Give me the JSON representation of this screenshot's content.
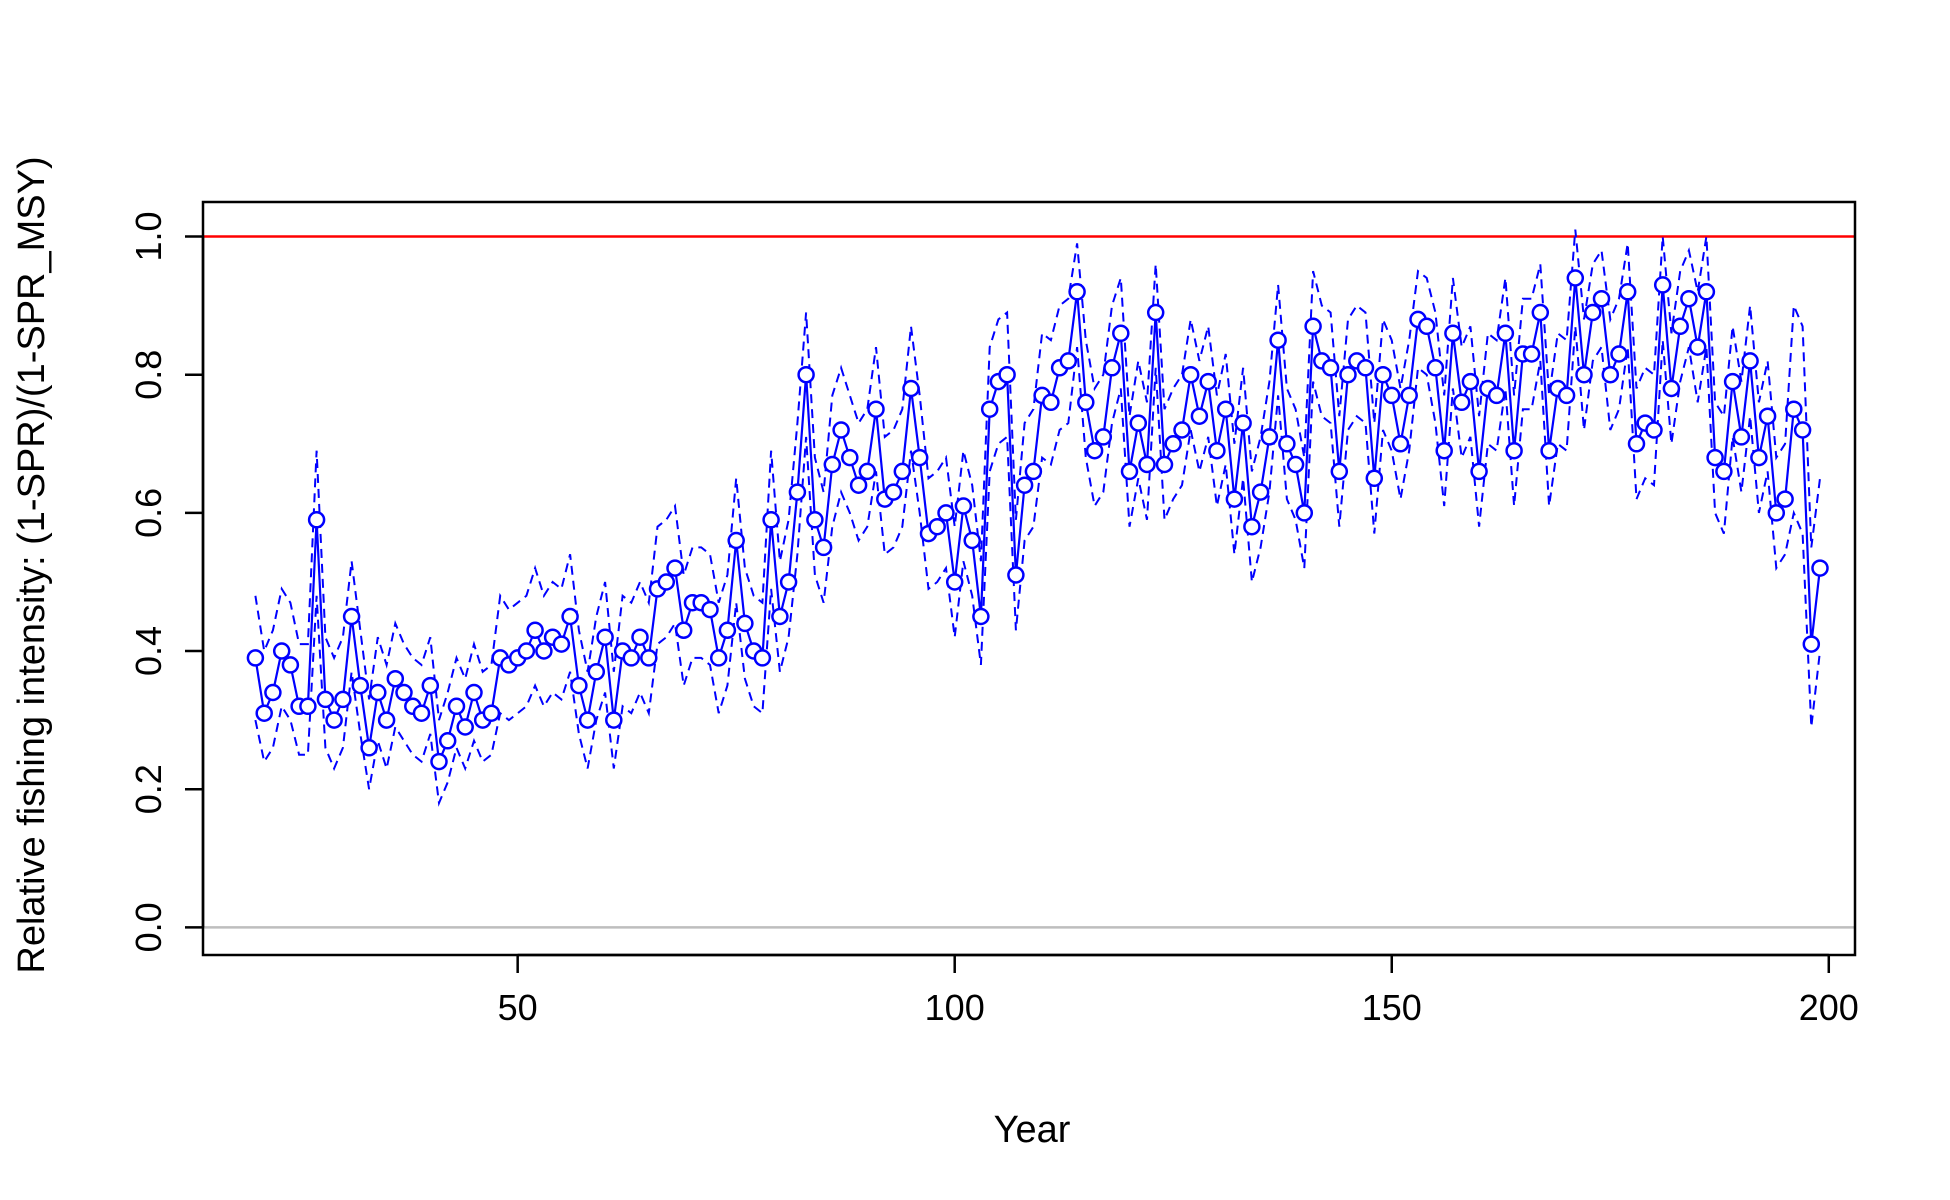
{
  "chart_data": {
    "type": "line",
    "title": "",
    "xlabel": "Year",
    "ylabel": "Relative fishing intensity: (1-SPR)/(1-SPR_MSY)",
    "xlim": [
      14,
      203
    ],
    "ylim": [
      -0.04,
      1.05
    ],
    "x_ticks": [
      50,
      100,
      150,
      200
    ],
    "x_tick_labels": [
      "50",
      "100",
      "150",
      "200"
    ],
    "y_ticks": [
      0.0,
      0.2,
      0.4,
      0.6,
      0.8,
      1.0
    ],
    "y_tick_labels": [
      "0.0",
      "0.2",
      "0.4",
      "0.6",
      "0.8",
      "1.0"
    ],
    "grid": false,
    "reference_lines": [
      {
        "y": 1.0,
        "color": "#ff0000"
      },
      {
        "y": 0.0,
        "color": "#bebebe"
      }
    ],
    "series_color": "#0000ff",
    "x_start": 20,
    "values": [
      0.39,
      0.31,
      0.34,
      0.4,
      0.38,
      0.32,
      0.32,
      0.59,
      0.33,
      0.3,
      0.33,
      0.45,
      0.35,
      0.26,
      0.34,
      0.3,
      0.36,
      0.34,
      0.32,
      0.31,
      0.35,
      0.24,
      0.27,
      0.32,
      0.29,
      0.34,
      0.3,
      0.31,
      0.39,
      0.38,
      0.39,
      0.4,
      0.43,
      0.4,
      0.42,
      0.41,
      0.45,
      0.35,
      0.3,
      0.37,
      0.42,
      0.3,
      0.4,
      0.39,
      0.42,
      0.39,
      0.49,
      0.5,
      0.52,
      0.43,
      0.47,
      0.47,
      0.46,
      0.39,
      0.43,
      0.56,
      0.44,
      0.4,
      0.39,
      0.59,
      0.45,
      0.5,
      0.63,
      0.8,
      0.59,
      0.55,
      0.67,
      0.72,
      0.68,
      0.64,
      0.66,
      0.75,
      0.62,
      0.63,
      0.66,
      0.78,
      0.68,
      0.57,
      0.58,
      0.6,
      0.5,
      0.61,
      0.56,
      0.45,
      0.75,
      0.79,
      0.8,
      0.51,
      0.64,
      0.66,
      0.77,
      0.76,
      0.81,
      0.82,
      0.92,
      0.76,
      0.69,
      0.71,
      0.81,
      0.86,
      0.66,
      0.73,
      0.67,
      0.89,
      0.67,
      0.7,
      0.72,
      0.8,
      0.74,
      0.79,
      0.69,
      0.75,
      0.62,
      0.73,
      0.58,
      0.63,
      0.71,
      0.85,
      0.7,
      0.67,
      0.6,
      0.87,
      0.82,
      0.81,
      0.66,
      0.8,
      0.82,
      0.81,
      0.65,
      0.8,
      0.77,
      0.7,
      0.77,
      0.88,
      0.87,
      0.81,
      0.69,
      0.86,
      0.76,
      0.79,
      0.66,
      0.78,
      0.77,
      0.86,
      0.69,
      0.83,
      0.83,
      0.89,
      0.69,
      0.78,
      0.77,
      0.94,
      0.8,
      0.89,
      0.91,
      0.8,
      0.83,
      0.92,
      0.7,
      0.73,
      0.72,
      0.93,
      0.78,
      0.87,
      0.91,
      0.84,
      0.92,
      0.68,
      0.66,
      0.79,
      0.71,
      0.82,
      0.68,
      0.74,
      0.6,
      0.62,
      0.75,
      0.72,
      0.41,
      0.52
    ],
    "ci_upper": [
      0.48,
      0.4,
      0.43,
      0.49,
      0.47,
      0.41,
      0.41,
      0.69,
      0.42,
      0.39,
      0.42,
      0.53,
      0.43,
      0.33,
      0.42,
      0.38,
      0.44,
      0.41,
      0.39,
      0.38,
      0.42,
      0.3,
      0.34,
      0.39,
      0.36,
      0.41,
      0.37,
      0.38,
      0.48,
      0.46,
      0.47,
      0.48,
      0.52,
      0.48,
      0.5,
      0.49,
      0.54,
      0.43,
      0.37,
      0.45,
      0.5,
      0.37,
      0.48,
      0.47,
      0.5,
      0.47,
      0.58,
      0.59,
      0.61,
      0.51,
      0.55,
      0.55,
      0.54,
      0.47,
      0.51,
      0.65,
      0.52,
      0.48,
      0.47,
      0.69,
      0.53,
      0.59,
      0.73,
      0.89,
      0.68,
      0.63,
      0.77,
      0.81,
      0.77,
      0.73,
      0.75,
      0.84,
      0.71,
      0.72,
      0.75,
      0.87,
      0.77,
      0.65,
      0.66,
      0.68,
      0.58,
      0.69,
      0.64,
      0.53,
      0.84,
      0.88,
      0.89,
      0.59,
      0.73,
      0.75,
      0.86,
      0.85,
      0.9,
      0.91,
      0.99,
      0.85,
      0.78,
      0.8,
      0.9,
      0.94,
      0.74,
      0.82,
      0.76,
      0.96,
      0.75,
      0.78,
      0.8,
      0.88,
      0.82,
      0.87,
      0.77,
      0.83,
      0.7,
      0.81,
      0.66,
      0.71,
      0.79,
      0.93,
      0.78,
      0.75,
      0.68,
      0.95,
      0.9,
      0.89,
      0.74,
      0.88,
      0.9,
      0.89,
      0.73,
      0.88,
      0.85,
      0.78,
      0.85,
      0.95,
      0.94,
      0.89,
      0.77,
      0.94,
      0.84,
      0.87,
      0.74,
      0.86,
      0.85,
      0.94,
      0.77,
      0.91,
      0.91,
      0.96,
      0.77,
      0.86,
      0.85,
      1.01,
      0.88,
      0.96,
      0.98,
      0.88,
      0.91,
      0.99,
      0.78,
      0.81,
      0.8,
      1.0,
      0.86,
      0.95,
      0.98,
      0.92,
      1.0,
      0.76,
      0.74,
      0.87,
      0.79,
      0.9,
      0.76,
      0.82,
      0.68,
      0.7,
      0.9,
      0.87,
      0.55,
      0.65
    ],
    "ci_lower": [
      0.3,
      0.24,
      0.26,
      0.32,
      0.3,
      0.25,
      0.25,
      0.48,
      0.26,
      0.23,
      0.26,
      0.37,
      0.28,
      0.2,
      0.27,
      0.23,
      0.29,
      0.27,
      0.25,
      0.24,
      0.28,
      0.18,
      0.21,
      0.26,
      0.23,
      0.27,
      0.24,
      0.25,
      0.31,
      0.3,
      0.31,
      0.32,
      0.35,
      0.32,
      0.34,
      0.33,
      0.37,
      0.28,
      0.23,
      0.3,
      0.34,
      0.23,
      0.32,
      0.31,
      0.34,
      0.31,
      0.41,
      0.42,
      0.44,
      0.35,
      0.39,
      0.39,
      0.38,
      0.31,
      0.35,
      0.47,
      0.36,
      0.32,
      0.31,
      0.49,
      0.37,
      0.42,
      0.54,
      0.71,
      0.51,
      0.47,
      0.58,
      0.63,
      0.6,
      0.56,
      0.58,
      0.66,
      0.54,
      0.55,
      0.58,
      0.69,
      0.6,
      0.49,
      0.5,
      0.52,
      0.42,
      0.53,
      0.48,
      0.38,
      0.66,
      0.7,
      0.71,
      0.43,
      0.56,
      0.58,
      0.68,
      0.67,
      0.72,
      0.73,
      0.84,
      0.68,
      0.61,
      0.63,
      0.73,
      0.78,
      0.58,
      0.65,
      0.59,
      0.81,
      0.59,
      0.62,
      0.64,
      0.72,
      0.66,
      0.71,
      0.61,
      0.67,
      0.54,
      0.65,
      0.5,
      0.55,
      0.63,
      0.77,
      0.62,
      0.59,
      0.52,
      0.79,
      0.74,
      0.73,
      0.58,
      0.72,
      0.74,
      0.73,
      0.57,
      0.72,
      0.69,
      0.62,
      0.69,
      0.81,
      0.8,
      0.73,
      0.61,
      0.78,
      0.68,
      0.71,
      0.58,
      0.7,
      0.69,
      0.78,
      0.61,
      0.75,
      0.75,
      0.82,
      0.61,
      0.7,
      0.69,
      0.87,
      0.72,
      0.82,
      0.84,
      0.72,
      0.75,
      0.84,
      0.62,
      0.65,
      0.64,
      0.85,
      0.7,
      0.79,
      0.84,
      0.76,
      0.84,
      0.6,
      0.57,
      0.71,
      0.63,
      0.74,
      0.6,
      0.66,
      0.52,
      0.54,
      0.6,
      0.57,
      0.29,
      0.4
    ]
  }
}
